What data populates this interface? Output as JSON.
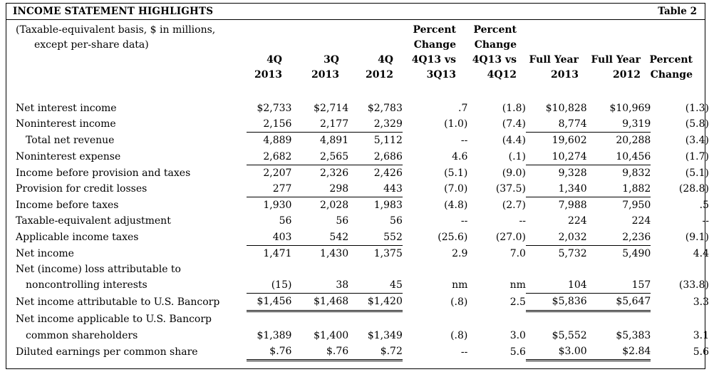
{
  "header": {
    "title": "INCOME STATEMENT HIGHLIGHTS",
    "table_label": "Table 2"
  },
  "note": {
    "line1": "(Taxable-equivalent basis, $ in millions,",
    "line2": "except per-share data)"
  },
  "columns": [
    {
      "l1": "",
      "l2": "",
      "l3": "4Q",
      "l4": "2013"
    },
    {
      "l1": "",
      "l2": "",
      "l3": "3Q",
      "l4": "2013"
    },
    {
      "l1": "",
      "l2": "",
      "l3": "4Q",
      "l4": "2012"
    },
    {
      "l1": "Percent",
      "l2": "Change",
      "l3": "4Q13 vs",
      "l4": "3Q13"
    },
    {
      "l1": "Percent",
      "l2": "Change",
      "l3": "4Q13 vs",
      "l4": "4Q12"
    },
    {
      "l1": "",
      "l2": "",
      "l3": "Full Year",
      "l4": "2013"
    },
    {
      "l1": "",
      "l2": "",
      "l3": "Full Year",
      "l4": "2012"
    },
    {
      "l1": "",
      "l2": "",
      "l3": "Percent",
      "l4": "Change"
    }
  ],
  "rows": [
    {
      "label": "Net interest income",
      "cells": [
        "$2,733",
        "$2,714",
        "$2,783",
        ".7",
        "(1.8)",
        "$10,828",
        "$10,969",
        "(1.3)"
      ]
    },
    {
      "label": "Noninterest income",
      "cells": [
        "2,156",
        "2,177",
        "2,329",
        "(1.0)",
        "(7.4)",
        "8,774",
        "9,319",
        "(5.8)"
      ]
    },
    {
      "label": "Total net revenue",
      "cells": [
        "4,889",
        "4,891",
        "5,112",
        "--",
        "(4.4)",
        "19,602",
        "20,288",
        "(3.4)"
      ]
    },
    {
      "label": "Noninterest expense",
      "cells": [
        "2,682",
        "2,565",
        "2,686",
        "4.6",
        "(.1)",
        "10,274",
        "10,456",
        "(1.7)"
      ]
    },
    {
      "label": "Income before provision and taxes",
      "cells": [
        "2,207",
        "2,326",
        "2,426",
        "(5.1)",
        "(9.0)",
        "9,328",
        "9,832",
        "(5.1)"
      ]
    },
    {
      "label": "Provision for credit losses",
      "cells": [
        "277",
        "298",
        "443",
        "(7.0)",
        "(37.5)",
        "1,340",
        "1,882",
        "(28.8)"
      ]
    },
    {
      "label": "Income before taxes",
      "cells": [
        "1,930",
        "2,028",
        "1,983",
        "(4.8)",
        "(2.7)",
        "7,988",
        "7,950",
        ".5"
      ]
    },
    {
      "label": "Taxable-equivalent adjustment",
      "cells": [
        "56",
        "56",
        "56",
        "--",
        "--",
        "224",
        "224",
        "--"
      ]
    },
    {
      "label": "Applicable income taxes",
      "cells": [
        "403",
        "542",
        "552",
        "(25.6)",
        "(27.0)",
        "2,032",
        "2,236",
        "(9.1)"
      ]
    },
    {
      "label": "Net income",
      "cells": [
        "1,471",
        "1,430",
        "1,375",
        "2.9",
        "7.0",
        "5,732",
        "5,490",
        "4.4"
      ]
    },
    {
      "label": "Net (income) loss attributable to",
      "cells": [
        "",
        "",
        "",
        "",
        "",
        "",
        "",
        ""
      ]
    },
    {
      "label": "noncontrolling interests",
      "cells": [
        "(15)",
        "38",
        "45",
        "nm",
        "nm",
        "104",
        "157",
        "(33.8)"
      ]
    },
    {
      "label": "Net income attributable to U.S. Bancorp",
      "cells": [
        "$1,456",
        "$1,468",
        "$1,420",
        "(.8)",
        "2.5",
        "$5,836",
        "$5,647",
        "3.3"
      ]
    },
    {
      "label": "Net income applicable to U.S. Bancorp",
      "cells": [
        "",
        "",
        "",
        "",
        "",
        "",
        "",
        ""
      ]
    },
    {
      "label": "common shareholders",
      "cells": [
        "$1,389",
        "$1,400",
        "$1,349",
        "(.8)",
        "3.0",
        "$5,552",
        "$5,383",
        "3.1"
      ]
    },
    {
      "label": "Diluted earnings per common share",
      "cells": [
        "$.76",
        "$.76",
        "$.72",
        "--",
        "5.6",
        "$3.00",
        "$2.84",
        "5.6"
      ]
    }
  ]
}
